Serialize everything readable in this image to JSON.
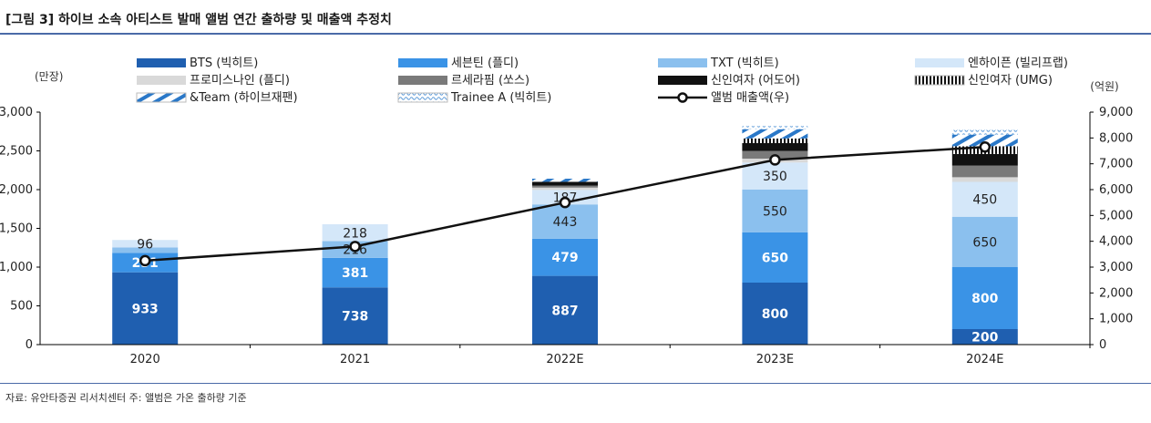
{
  "title": "[그림 3] 하이브 소속 아티스트 발매 앨범 연간 출하량 및 매출액 추정치",
  "source": "자료: 유안타증권 리서치센터  주: 앨범은 가온 출하량 기준",
  "chart_data": {
    "type": "bar",
    "stacked": true,
    "categories": [
      "2020",
      "2021",
      "2022E",
      "2023E",
      "2024E"
    ],
    "ylabel_left": "(만장)",
    "ylabel_right": "(억원)",
    "ylim_left": [
      0,
      3000
    ],
    "ylim_right": [
      0,
      9000
    ],
    "yticks_left": [
      "0",
      "500",
      "1,000",
      "1,500",
      "2,000",
      "2,500",
      "3,000"
    ],
    "yticks_right": [
      "0",
      "1,000",
      "2,000",
      "3,000",
      "4,000",
      "5,000",
      "6,000",
      "7,000",
      "8,000",
      "9,000"
    ],
    "grid": false,
    "legend_position": "top",
    "series": [
      {
        "name": "BTS (빅히트)",
        "color": "#1f5fb0",
        "pattern": "solid",
        "values": [
          933,
          738,
          887,
          800,
          200
        ],
        "labels": [
          "933",
          "738",
          "887",
          "800",
          "200"
        ]
      },
      {
        "name": "세븐틴 (플디)",
        "color": "#3a93e6",
        "pattern": "solid",
        "values": [
          251,
          381,
          479,
          650,
          800
        ],
        "labels": [
          "251",
          "381",
          "479",
          "650",
          "800"
        ]
      },
      {
        "name": "TXT (빅히트)",
        "color": "#8bc0ee",
        "pattern": "solid",
        "values": [
          70,
          216,
          443,
          550,
          650
        ],
        "labels": [
          "",
          "216",
          "443",
          "550",
          "650"
        ]
      },
      {
        "name": "엔하이픈 (빌리프랩)",
        "color": "#d4e7f9",
        "pattern": "solid",
        "values": [
          96,
          218,
          187,
          350,
          450
        ],
        "labels": [
          "96",
          "218",
          "187",
          "350",
          "450"
        ]
      },
      {
        "name": "프로미스나인 (플디)",
        "color": "#d9d9d9",
        "pattern": "solid",
        "values": [
          0,
          0,
          30,
          50,
          60
        ],
        "labels": [
          "",
          "",
          "",
          "",
          ""
        ]
      },
      {
        "name": "르세라핌 (쏘스)",
        "color": "#7a7a7a",
        "pattern": "solid",
        "values": [
          0,
          0,
          25,
          100,
          150
        ],
        "labels": [
          "",
          "",
          "",
          "",
          ""
        ]
      },
      {
        "name": "신인여자 (어도어)",
        "color": "#111111",
        "pattern": "solid",
        "values": [
          0,
          0,
          50,
          100,
          150
        ],
        "labels": [
          "",
          "",
          "",
          "",
          ""
        ]
      },
      {
        "name": "신인여자 (UMG)",
        "color": "#222222",
        "pattern": "vstripe",
        "values": [
          0,
          0,
          0,
          60,
          100
        ],
        "labels": [
          "",
          "",
          "",
          "",
          ""
        ]
      },
      {
        "name": "&Team (하이브재팬)",
        "color": "#2a78c8",
        "pattern": "diag",
        "values": [
          0,
          0,
          40,
          120,
          150
        ],
        "labels": [
          "",
          "",
          "",
          "",
          ""
        ]
      },
      {
        "name": "Trainee A (빅히트)",
        "color": "#5b9ad8",
        "pattern": "wave",
        "values": [
          0,
          0,
          0,
          40,
          60
        ],
        "labels": [
          "",
          "",
          "",
          "",
          ""
        ]
      }
    ],
    "line": {
      "name": "앨범 매출액(우)",
      "axis": "right",
      "color": "#111111",
      "values": [
        3250,
        3800,
        5500,
        7150,
        7650
      ]
    }
  }
}
